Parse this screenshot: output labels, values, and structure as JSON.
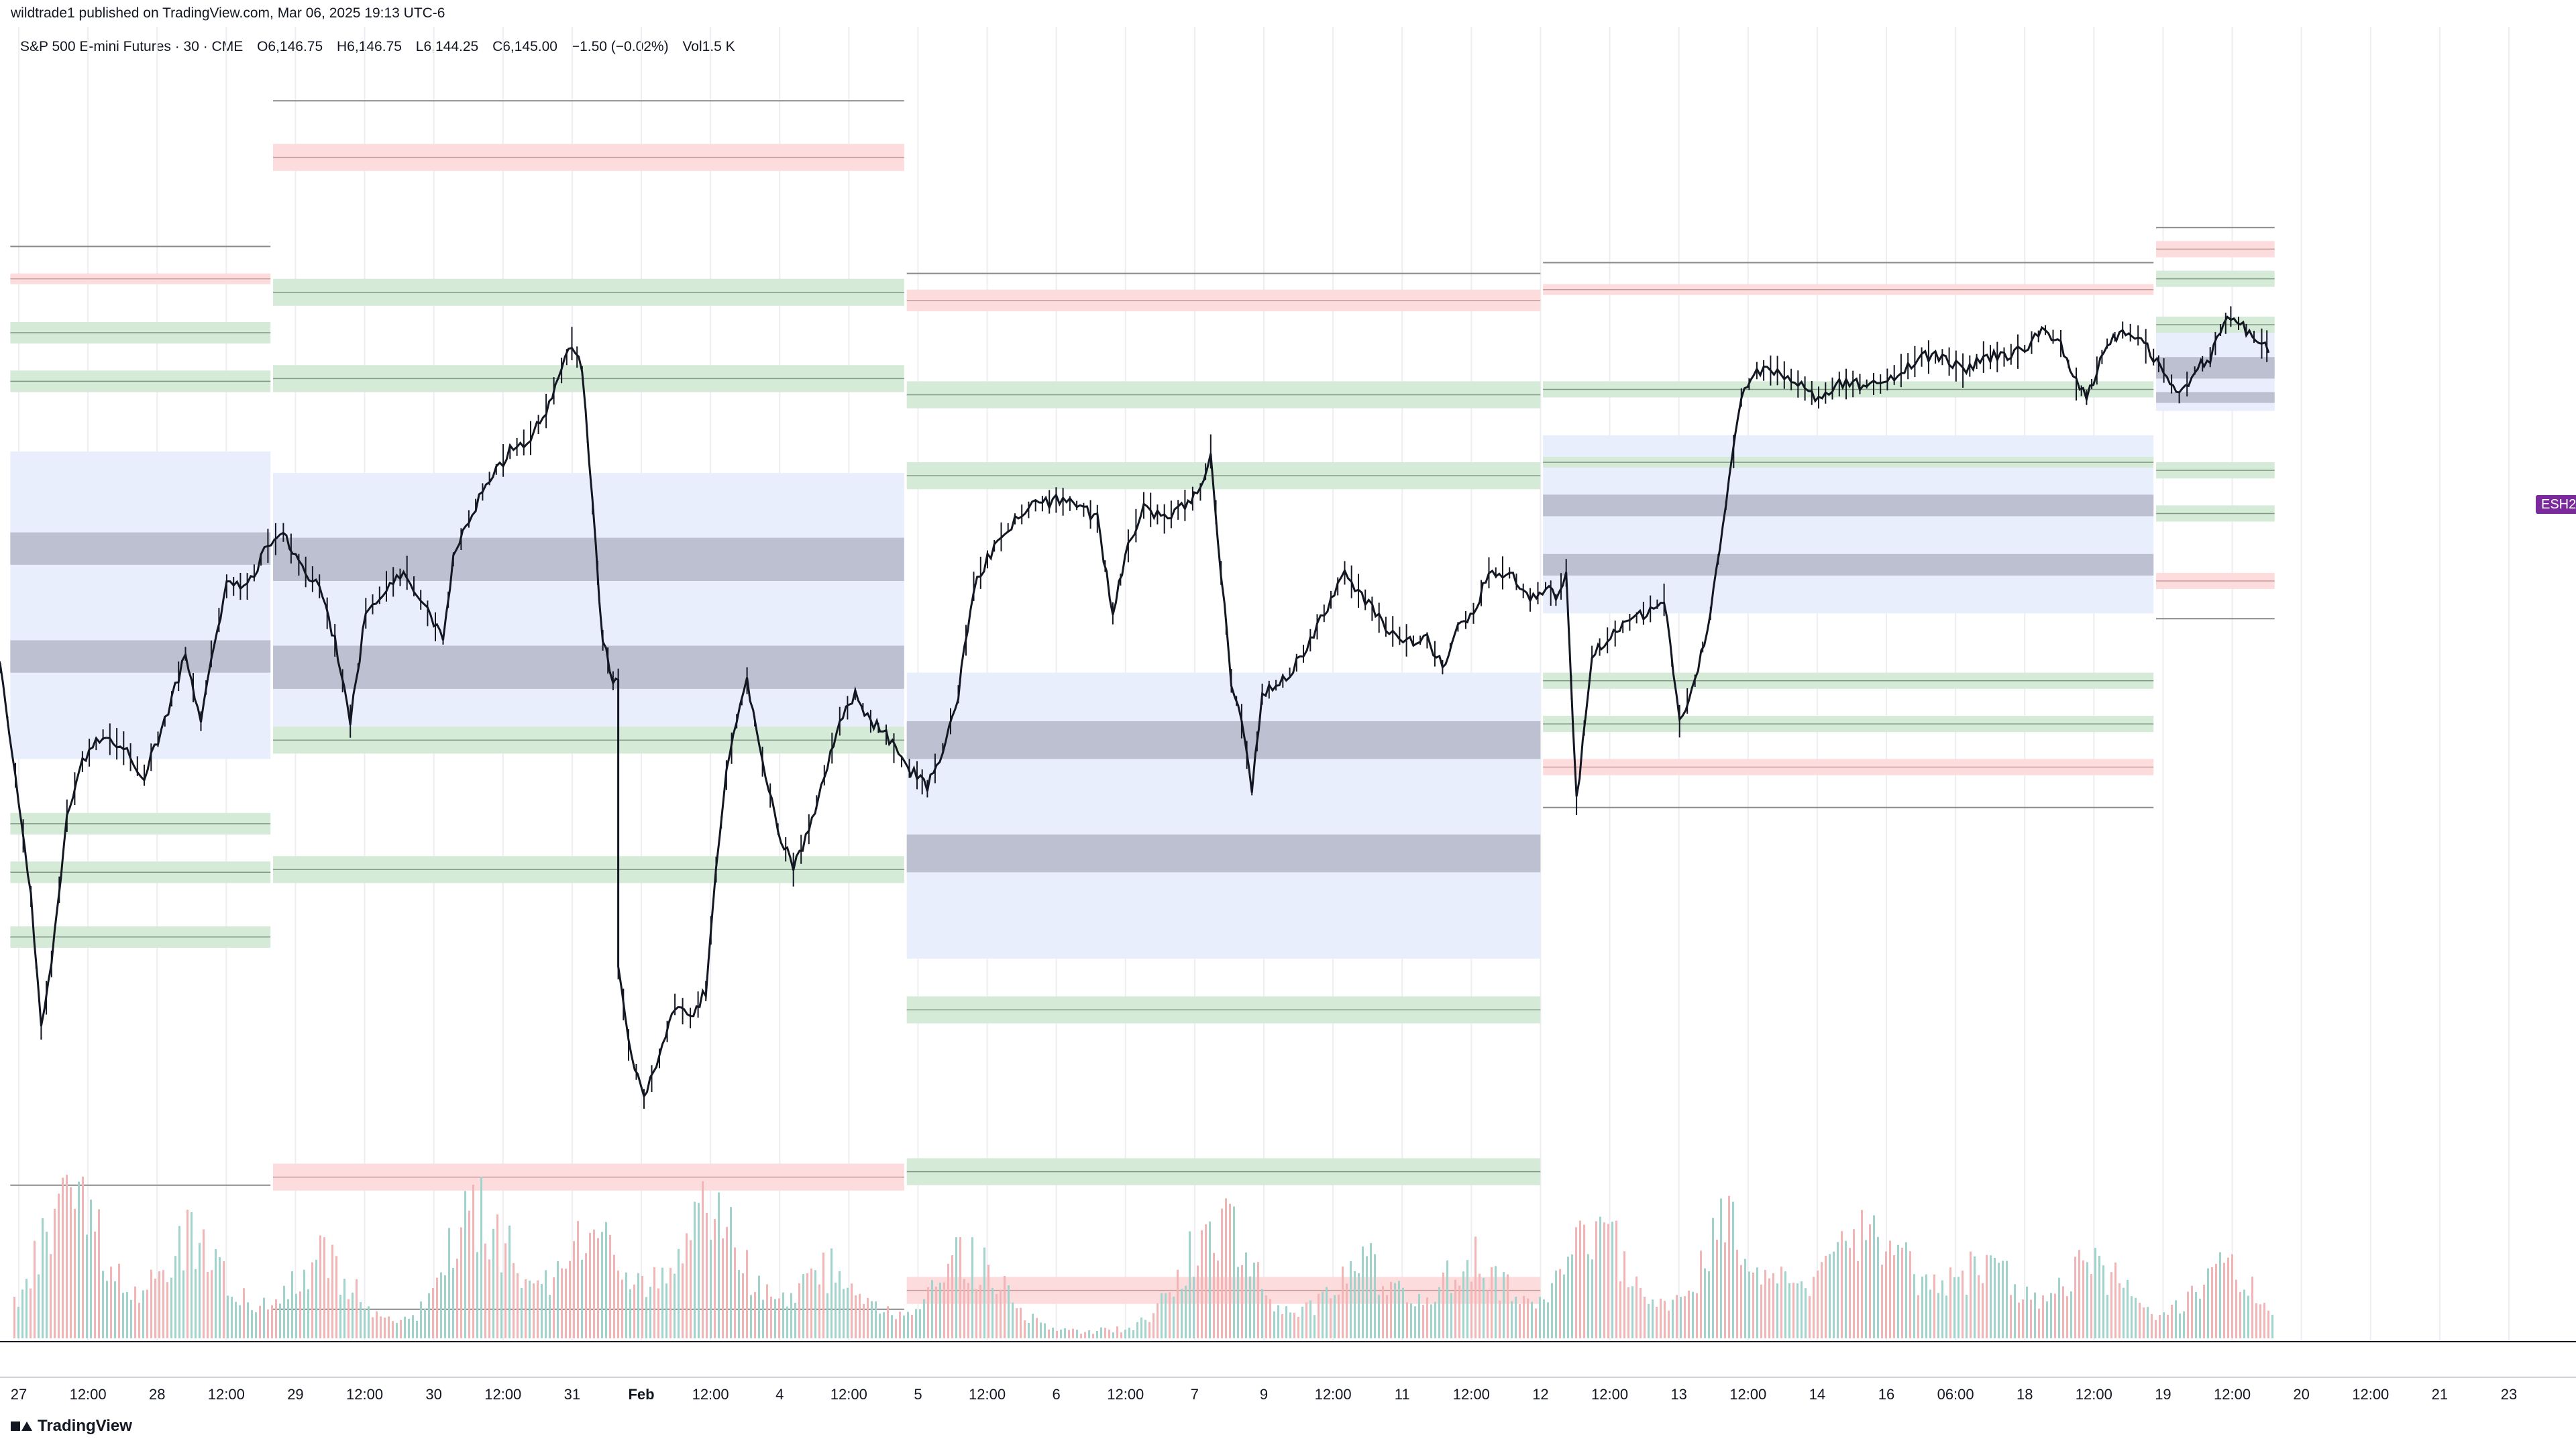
{
  "publisher": "wildtrade1 published on TradingView.com, Mar 06, 2025 19:13 UTC-6",
  "legend": {
    "symbol": "S&P 500 E-mini Futures · 30 · CME",
    "open": "O6,146.75",
    "high": "H6,146.75",
    "low": "L6,144.25",
    "close": "C6,145.00",
    "change": "−1.50 (−0.02%)",
    "volume": "Vol1.5 K"
  },
  "price_tag": "ESH2",
  "brand": "TradingView",
  "colors": {
    "candle": "#131722",
    "zone_green": "#d6ead8",
    "zone_red": "#fcdcdc",
    "zone_blue": "#e8eefc",
    "zone_dark": "#b4b7c8",
    "volume_up": "#9fd3cb",
    "volume_down": "#f2b4b4",
    "grid": "#eeeef2",
    "tag": "#7b2a9b"
  },
  "chart_data": {
    "type": "candlestick",
    "title": "S&P 500 E-mini Futures · 30 · CME",
    "grid": true,
    "y_scale_hidden": true,
    "x_ticks": [
      "27",
      "12:00",
      "28",
      "12:00",
      "29",
      "12:00",
      "30",
      "12:00",
      "31",
      "Feb",
      "12:00",
      "4",
      "12:00",
      "5",
      "12:00",
      "6",
      "12:00",
      "7",
      "9",
      "12:00",
      "11",
      "12:00",
      "12",
      "12:00",
      "13",
      "12:00",
      "14",
      "16",
      "06:00",
      "18",
      "12:00",
      "19",
      "12:00",
      "20",
      "12:00",
      "21",
      "23"
    ],
    "price_path": [
      {
        "x": 0.0,
        "y": 5980
      },
      {
        "x": 0.006,
        "y": 5940
      },
      {
        "x": 0.012,
        "y": 5895
      },
      {
        "x": 0.016,
        "y": 5845
      },
      {
        "x": 0.02,
        "y": 5870
      },
      {
        "x": 0.026,
        "y": 5925
      },
      {
        "x": 0.032,
        "y": 5945
      },
      {
        "x": 0.04,
        "y": 5955
      },
      {
        "x": 0.048,
        "y": 5950
      },
      {
        "x": 0.056,
        "y": 5940
      },
      {
        "x": 0.064,
        "y": 5960
      },
      {
        "x": 0.072,
        "y": 5985
      },
      {
        "x": 0.078,
        "y": 5960
      },
      {
        "x": 0.082,
        "y": 5985
      },
      {
        "x": 0.088,
        "y": 6010
      },
      {
        "x": 0.096,
        "y": 6010
      },
      {
        "x": 0.104,
        "y": 6025
      },
      {
        "x": 0.11,
        "y": 6030
      },
      {
        "x": 0.116,
        "y": 6018
      },
      {
        "x": 0.124,
        "y": 6010
      },
      {
        "x": 0.13,
        "y": 5990
      },
      {
        "x": 0.136,
        "y": 5960
      },
      {
        "x": 0.142,
        "y": 6000
      },
      {
        "x": 0.15,
        "y": 6010
      },
      {
        "x": 0.158,
        "y": 6015
      },
      {
        "x": 0.166,
        "y": 6000
      },
      {
        "x": 0.172,
        "y": 5990
      },
      {
        "x": 0.176,
        "y": 6020
      },
      {
        "x": 0.182,
        "y": 6035
      },
      {
        "x": 0.19,
        "y": 6050
      },
      {
        "x": 0.198,
        "y": 6060
      },
      {
        "x": 0.206,
        "y": 6065
      },
      {
        "x": 0.212,
        "y": 6075
      },
      {
        "x": 0.218,
        "y": 6090
      },
      {
        "x": 0.222,
        "y": 6100
      },
      {
        "x": 0.226,
        "y": 6090
      },
      {
        "x": 0.23,
        "y": 6040
      },
      {
        "x": 0.234,
        "y": 5990
      },
      {
        "x": 0.238,
        "y": 5975
      },
      {
        "x": 0.24,
        "y": 5975
      },
      {
        "x": 0.24,
        "y": 5870
      },
      {
        "x": 0.244,
        "y": 5840
      },
      {
        "x": 0.25,
        "y": 5820
      },
      {
        "x": 0.256,
        "y": 5835
      },
      {
        "x": 0.262,
        "y": 5855
      },
      {
        "x": 0.268,
        "y": 5850
      },
      {
        "x": 0.274,
        "y": 5860
      },
      {
        "x": 0.278,
        "y": 5905
      },
      {
        "x": 0.282,
        "y": 5940
      },
      {
        "x": 0.286,
        "y": 5960
      },
      {
        "x": 0.29,
        "y": 5975
      },
      {
        "x": 0.296,
        "y": 5945
      },
      {
        "x": 0.302,
        "y": 5920
      },
      {
        "x": 0.308,
        "y": 5905
      },
      {
        "x": 0.314,
        "y": 5920
      },
      {
        "x": 0.32,
        "y": 5940
      },
      {
        "x": 0.326,
        "y": 5960
      },
      {
        "x": 0.332,
        "y": 5970
      },
      {
        "x": 0.338,
        "y": 5960
      },
      {
        "x": 0.344,
        "y": 5955
      },
      {
        "x": 0.35,
        "y": 5945
      },
      {
        "x": 0.356,
        "y": 5940
      },
      {
        "x": 0.36,
        "y": 5935
      },
      {
        "x": 0.366,
        "y": 5950
      },
      {
        "x": 0.372,
        "y": 5970
      },
      {
        "x": 0.378,
        "y": 6010
      },
      {
        "x": 0.386,
        "y": 6025
      },
      {
        "x": 0.394,
        "y": 6035
      },
      {
        "x": 0.402,
        "y": 6040
      },
      {
        "x": 0.41,
        "y": 6042
      },
      {
        "x": 0.418,
        "y": 6040
      },
      {
        "x": 0.426,
        "y": 6035
      },
      {
        "x": 0.432,
        "y": 6000
      },
      {
        "x": 0.438,
        "y": 6025
      },
      {
        "x": 0.444,
        "y": 6040
      },
      {
        "x": 0.452,
        "y": 6035
      },
      {
        "x": 0.46,
        "y": 6040
      },
      {
        "x": 0.466,
        "y": 6045
      },
      {
        "x": 0.47,
        "y": 6060
      },
      {
        "x": 0.474,
        "y": 6015
      },
      {
        "x": 0.478,
        "y": 5975
      },
      {
        "x": 0.482,
        "y": 5960
      },
      {
        "x": 0.486,
        "y": 5935
      },
      {
        "x": 0.49,
        "y": 5970
      },
      {
        "x": 0.498,
        "y": 5975
      },
      {
        "x": 0.506,
        "y": 5985
      },
      {
        "x": 0.514,
        "y": 6000
      },
      {
        "x": 0.522,
        "y": 6015
      },
      {
        "x": 0.53,
        "y": 6005
      },
      {
        "x": 0.538,
        "y": 5995
      },
      {
        "x": 0.546,
        "y": 5990
      },
      {
        "x": 0.554,
        "y": 5990
      },
      {
        "x": 0.56,
        "y": 5980
      },
      {
        "x": 0.566,
        "y": 5995
      },
      {
        "x": 0.572,
        "y": 6000
      },
      {
        "x": 0.578,
        "y": 6015
      },
      {
        "x": 0.586,
        "y": 6015
      },
      {
        "x": 0.594,
        "y": 6005
      },
      {
        "x": 0.6,
        "y": 6010
      },
      {
        "x": 0.604,
        "y": 6005
      },
      {
        "x": 0.608,
        "y": 6015
      },
      {
        "x": 0.612,
        "y": 5930
      },
      {
        "x": 0.618,
        "y": 5985
      },
      {
        "x": 0.624,
        "y": 5990
      },
      {
        "x": 0.63,
        "y": 5995
      },
      {
        "x": 0.638,
        "y": 6000
      },
      {
        "x": 0.646,
        "y": 6005
      },
      {
        "x": 0.652,
        "y": 5960
      },
      {
        "x": 0.658,
        "y": 5975
      },
      {
        "x": 0.664,
        "y": 6000
      },
      {
        "x": 0.67,
        "y": 6040
      },
      {
        "x": 0.676,
        "y": 6080
      },
      {
        "x": 0.682,
        "y": 6090
      },
      {
        "x": 0.69,
        "y": 6090
      },
      {
        "x": 0.698,
        "y": 6085
      },
      {
        "x": 0.706,
        "y": 6080
      },
      {
        "x": 0.714,
        "y": 6085
      },
      {
        "x": 0.722,
        "y": 6085
      },
      {
        "x": 0.73,
        "y": 6085
      },
      {
        "x": 0.738,
        "y": 6090
      },
      {
        "x": 0.746,
        "y": 6095
      },
      {
        "x": 0.754,
        "y": 6095
      },
      {
        "x": 0.762,
        "y": 6090
      },
      {
        "x": 0.77,
        "y": 6095
      },
      {
        "x": 0.778,
        "y": 6095
      },
      {
        "x": 0.786,
        "y": 6098
      },
      {
        "x": 0.794,
        "y": 6105
      },
      {
        "x": 0.8,
        "y": 6100
      },
      {
        "x": 0.806,
        "y": 6085
      },
      {
        "x": 0.81,
        "y": 6080
      },
      {
        "x": 0.814,
        "y": 6090
      },
      {
        "x": 0.818,
        "y": 6100
      },
      {
        "x": 0.824,
        "y": 6105
      },
      {
        "x": 0.83,
        "y": 6103
      },
      {
        "x": 0.836,
        "y": 6095
      },
      {
        "x": 0.84,
        "y": 6090
      },
      {
        "x": 0.846,
        "y": 6080
      },
      {
        "x": 0.852,
        "y": 6090
      },
      {
        "x": 0.858,
        "y": 6095
      },
      {
        "x": 0.862,
        "y": 6105
      },
      {
        "x": 0.866,
        "y": 6110
      },
      {
        "x": 0.872,
        "y": 6105
      },
      {
        "x": 0.878,
        "y": 6100
      },
      {
        "x": 0.882,
        "y": 6098
      }
    ],
    "sessions": [
      {
        "x_start": 0.004,
        "x_end": 0.105,
        "lines": [
          6136,
          5788
        ],
        "red": [
          [
            6122,
            6126
          ]
        ],
        "green": [
          [
            6100,
            6108
          ],
          [
            6082,
            6090
          ],
          [
            5918,
            5926
          ],
          [
            5900,
            5908
          ],
          [
            5876,
            5884
          ]
        ],
        "blue": [
          [
            5946,
            6060
          ]
        ],
        "dark": [
          [
            6018,
            6030
          ],
          [
            5978,
            5990
          ]
        ]
      },
      {
        "x_start": 0.106,
        "x_end": 0.351,
        "lines": [
          6190,
          5742
        ],
        "red": [
          [
            6164,
            6174
          ],
          [
            5786,
            5796
          ]
        ],
        "green": [
          [
            6114,
            6124
          ],
          [
            6082,
            6092
          ],
          [
            5948,
            5958
          ],
          [
            5900,
            5910
          ]
        ],
        "blue": [
          [
            5958,
            6052
          ]
        ],
        "dark": [
          [
            6012,
            6028
          ],
          [
            5972,
            5988
          ]
        ]
      },
      {
        "x_start": 0.352,
        "x_end": 0.598,
        "lines": [
          6126
        ],
        "red": [
          [
            6112,
            6120
          ],
          [
            5744,
            5754
          ]
        ],
        "green": [
          [
            6076,
            6086
          ],
          [
            6046,
            6056
          ],
          [
            5848,
            5858
          ],
          [
            5788,
            5798
          ]
        ],
        "blue": [
          [
            5872,
            5978
          ]
        ],
        "dark": [
          [
            5946,
            5960
          ],
          [
            5904,
            5918
          ]
        ]
      },
      {
        "x_start": 0.599,
        "x_end": 0.836,
        "lines": [
          6130,
          5928
        ],
        "red": [
          [
            6118,
            6122
          ],
          [
            5940,
            5946
          ]
        ],
        "green": [
          [
            6080,
            6086
          ],
          [
            6054,
            6058
          ],
          [
            5972,
            5978
          ],
          [
            5956,
            5962
          ]
        ],
        "blue": [
          [
            6000,
            6066
          ]
        ],
        "dark": [
          [
            6036,
            6044
          ],
          [
            6014,
            6022
          ]
        ]
      },
      {
        "x_start": 0.837,
        "x_end": 0.883,
        "lines": [
          6143,
          5998
        ],
        "red": [
          [
            6132,
            6138
          ],
          [
            6009,
            6015
          ]
        ],
        "green": [
          [
            6121,
            6127
          ],
          [
            6104,
            6110
          ],
          [
            6050,
            6056
          ],
          [
            6034,
            6040
          ]
        ],
        "blue": [
          [
            6075,
            6105
          ]
        ],
        "dark": [
          [
            6087,
            6095
          ],
          [
            6078,
            6082
          ]
        ]
      }
    ],
    "volume_bursts": [
      {
        "x": 0.027,
        "rel": 0.85
      },
      {
        "x": 0.074,
        "rel": 0.55
      },
      {
        "x": 0.124,
        "rel": 0.45
      },
      {
        "x": 0.186,
        "rel": 0.72
      },
      {
        "x": 0.23,
        "rel": 0.55
      },
      {
        "x": 0.275,
        "rel": 0.75
      },
      {
        "x": 0.322,
        "rel": 0.38
      },
      {
        "x": 0.376,
        "rel": 0.45
      },
      {
        "x": 0.472,
        "rel": 0.68
      },
      {
        "x": 0.528,
        "rel": 0.4
      },
      {
        "x": 0.572,
        "rel": 0.42
      },
      {
        "x": 0.62,
        "rel": 0.6
      },
      {
        "x": 0.672,
        "rel": 0.62
      },
      {
        "x": 0.712,
        "rel": 0.35
      },
      {
        "x": 0.732,
        "rel": 0.45
      },
      {
        "x": 0.77,
        "rel": 0.38
      },
      {
        "x": 0.812,
        "rel": 0.4
      },
      {
        "x": 0.862,
        "rel": 0.38
      }
    ]
  }
}
